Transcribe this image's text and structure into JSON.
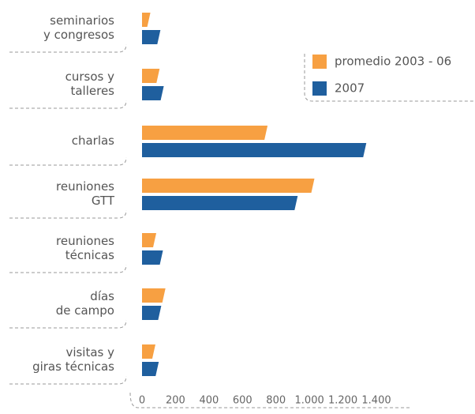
{
  "chart_data": {
    "type": "hbar",
    "categories": [
      "seminarios\ny congresos",
      "cursos y\ntalleres",
      "charlas",
      "reuniones\nGTT",
      "reuniones\ntécnicas",
      "días\nde campo",
      "visitas y\ngiras técnicas"
    ],
    "series": [
      {
        "name": "promedio 2003 - 06",
        "color": "#f7a042",
        "values": [
          50,
          105,
          750,
          1030,
          85,
          140,
          80
        ]
      },
      {
        "name": "2007",
        "color": "#1f5f9e",
        "values": [
          110,
          130,
          1340,
          930,
          125,
          115,
          100
        ]
      }
    ],
    "xlim": [
      0,
      1400
    ],
    "xticks": [
      0,
      200,
      400,
      600,
      800,
      {
        "value": 1000,
        "label": "1.000"
      },
      {
        "value": 1200,
        "label": "1.200"
      },
      {
        "value": 1400,
        "label": "1.400"
      }
    ],
    "legend": "upper right"
  }
}
